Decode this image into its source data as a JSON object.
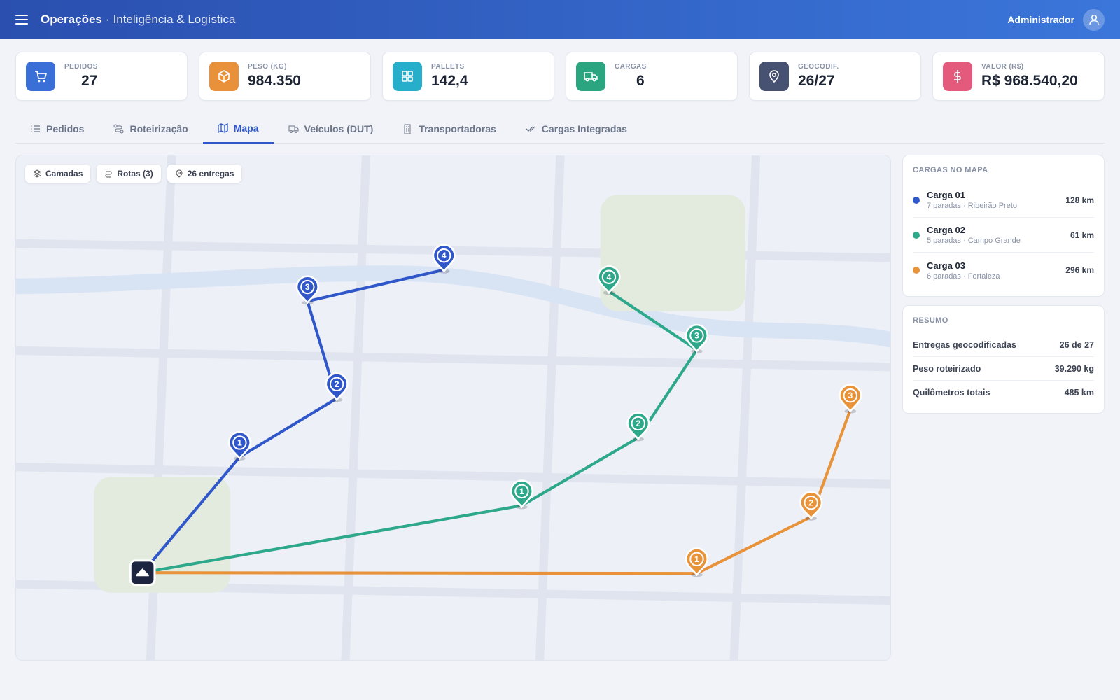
{
  "header": {
    "title": "Operações",
    "separator": "·",
    "subtitle": "Inteligência & Logística",
    "user": "Administrador"
  },
  "kpis": [
    {
      "label": "PEDIDOS",
      "value": "27"
    },
    {
      "label": "PESO (KG)",
      "value": "984.350"
    },
    {
      "label": "PALLETS",
      "value": "142,4"
    },
    {
      "label": "CARGAS",
      "value": "6"
    },
    {
      "label": "GEOCODIF.",
      "value": "26/27"
    },
    {
      "label": "VALOR (R$)",
      "value": "R$ 968.540,20"
    }
  ],
  "tabs": [
    "Pedidos",
    "Roteirização",
    "Mapa",
    "Veículos (DUT)",
    "Transportadoras",
    "Cargas Integradas"
  ],
  "active_tab": 2,
  "map": {
    "chips": [
      "Camadas",
      "Rotas (3)",
      "26 entregas"
    ]
  },
  "cargas_panel": {
    "title": "CARGAS NO MAPA"
  },
  "cargas": [
    {
      "name": "Carga 01",
      "details": "7 paradas · Ribeirão Preto",
      "distance": "128 km",
      "color": "#2f57c9",
      "stops": [
        "1",
        "2",
        "3",
        "4"
      ]
    },
    {
      "name": "Carga 02",
      "details": "5 paradas · Campo Grande",
      "distance": "61 km",
      "color": "#2ea88a",
      "stops": [
        "1",
        "2",
        "3",
        "4"
      ]
    },
    {
      "name": "Carga 03",
      "details": "6 paradas · Fortaleza",
      "distance": "296 km",
      "color": "#e8923a",
      "stops": [
        "1",
        "2",
        "3"
      ]
    }
  ],
  "resumo": {
    "title": "RESUMO",
    "rows": [
      {
        "label": "Entregas geocodificadas",
        "value": "26 de 27"
      },
      {
        "label": "Peso roteirizado",
        "value": "39.290 kg"
      },
      {
        "label": "Quilômetros totais",
        "value": "485 km"
      }
    ]
  }
}
